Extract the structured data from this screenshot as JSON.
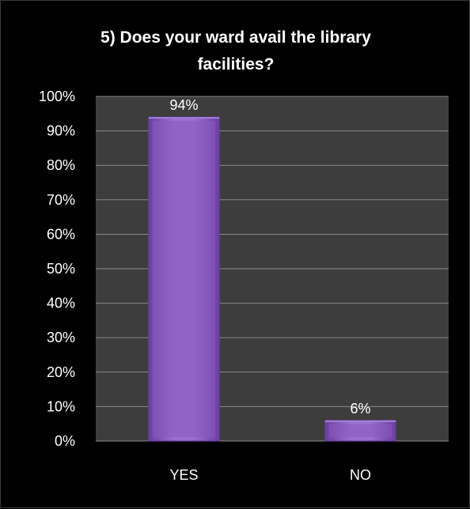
{
  "chart_data": {
    "type": "bar",
    "title_lines": [
      "5) Does your ward avail the library",
      "facilities?"
    ],
    "categories": [
      "YES",
      "NO"
    ],
    "values": [
      94,
      6
    ],
    "data_labels": [
      "94%",
      "6%"
    ],
    "ylim": [
      0,
      100
    ],
    "yticks": [
      "0%",
      "10%",
      "20%",
      "30%",
      "40%",
      "50%",
      "60%",
      "70%",
      "80%",
      "90%",
      "100%"
    ],
    "xlabel": "",
    "ylabel": "",
    "grid": true,
    "legend": "none",
    "colors": {
      "bar": "#8a5ac0",
      "bar_light": "#a57fd6",
      "bar_dark": "#6a3fa0",
      "plot_background": "#3d3d3d",
      "gridline": "#8a8a8a",
      "text": "#ffffff"
    }
  }
}
